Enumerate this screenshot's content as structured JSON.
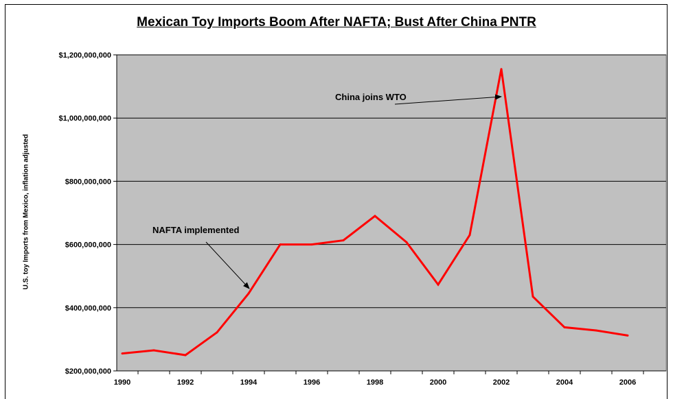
{
  "chart_data": {
    "type": "line",
    "title": "Mexican Toy Imports Boom After NAFTA; Bust After China PNTR",
    "ylabel": "U.S. toy Imports from Mexico, inflation adjusted",
    "xlabel": "",
    "ylim": [
      200000000,
      1200000000
    ],
    "yticks": [
      200000000,
      400000000,
      600000000,
      800000000,
      1000000000,
      1200000000
    ],
    "ytick_labels": [
      "$200,000,000",
      "$400,000,000",
      "$600,000,000",
      "$800,000,000",
      "$1,000,000,000",
      "$1,200,000,000"
    ],
    "xtick_labels": [
      "1990",
      "1992",
      "1994",
      "1996",
      "1998",
      "2000",
      "2002",
      "2004",
      "2006"
    ],
    "grid": "horizontal",
    "plot_background": "#c0c0c0",
    "line_color": "#ff0000",
    "series": [
      {
        "x": [
          1990,
          1991,
          1992,
          1993,
          1994,
          1995,
          1996,
          1997,
          1998,
          1999,
          2000,
          2001,
          2002,
          2003,
          2004,
          2005,
          2006
        ],
        "values": [
          255000000,
          265000000,
          250000000,
          322000000,
          445000000,
          600000000,
          600000000,
          613000000,
          690000000,
          607000000,
          473000000,
          630000000,
          1155000000,
          435000000,
          338000000,
          328000000,
          312000000
        ]
      }
    ],
    "annotations": [
      {
        "text": "China joins WTO",
        "points_to_year": 2002
      },
      {
        "text": "NAFTA implemented",
        "points_to_year": 1994
      }
    ]
  }
}
